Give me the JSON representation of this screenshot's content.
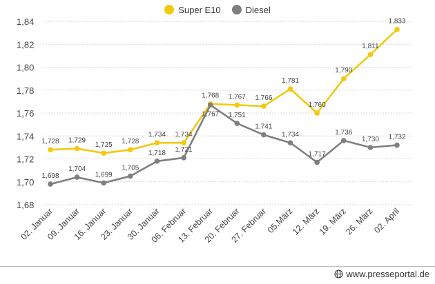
{
  "chart_data": {
    "type": "line",
    "categories": [
      "02. Januar",
      "09. Januar",
      "16. Januar",
      "23. Januar",
      "30. Januar",
      "06. Februar",
      "13. Februar",
      "20. Februar",
      "27. Februar",
      "05.März",
      "12. März",
      "19. März",
      "26. März",
      "02. April"
    ],
    "series": [
      {
        "name": "Super E10",
        "color": "#f2c911",
        "values": [
          1.728,
          1.729,
          1.725,
          1.728,
          1.734,
          1.734,
          1.768,
          1.767,
          1.766,
          1.781,
          1.76,
          1.79,
          1.811,
          1.833
        ],
        "labels": [
          "1,728",
          "1,729",
          "1,725",
          "1,728",
          "1,734",
          "1,734",
          "1,768",
          "1,767",
          "1,766",
          "1,781",
          "1,760",
          "1,790",
          "1,811",
          "1,833"
        ]
      },
      {
        "name": "Diesel",
        "color": "#7f7f7f",
        "values": [
          1.698,
          1.704,
          1.699,
          1.705,
          1.718,
          1.721,
          1.767,
          1.751,
          1.741,
          1.734,
          1.717,
          1.736,
          1.73,
          1.732
        ],
        "labels": [
          "1,698",
          "1,704",
          "1,699",
          "1,705",
          "1,718",
          "1,721",
          "1,767",
          "1,751",
          "1,741",
          "1,734",
          "1,717",
          "1,736",
          "1,730",
          "1,732"
        ]
      }
    ],
    "yticks": [
      1.68,
      1.7,
      1.72,
      1.74,
      1.76,
      1.78,
      1.8,
      1.82,
      1.84
    ],
    "ytick_labels": [
      "1,68",
      "1,70",
      "1,72",
      "1,74",
      "1,76",
      "1,78",
      "1,80",
      "1,82",
      "1,84"
    ],
    "ylim": [
      1.68,
      1.84
    ],
    "grid": true,
    "legend_position": "top-center"
  },
  "footer": {
    "credit": "www.presseportal.de",
    "icon": "globe-icon"
  }
}
